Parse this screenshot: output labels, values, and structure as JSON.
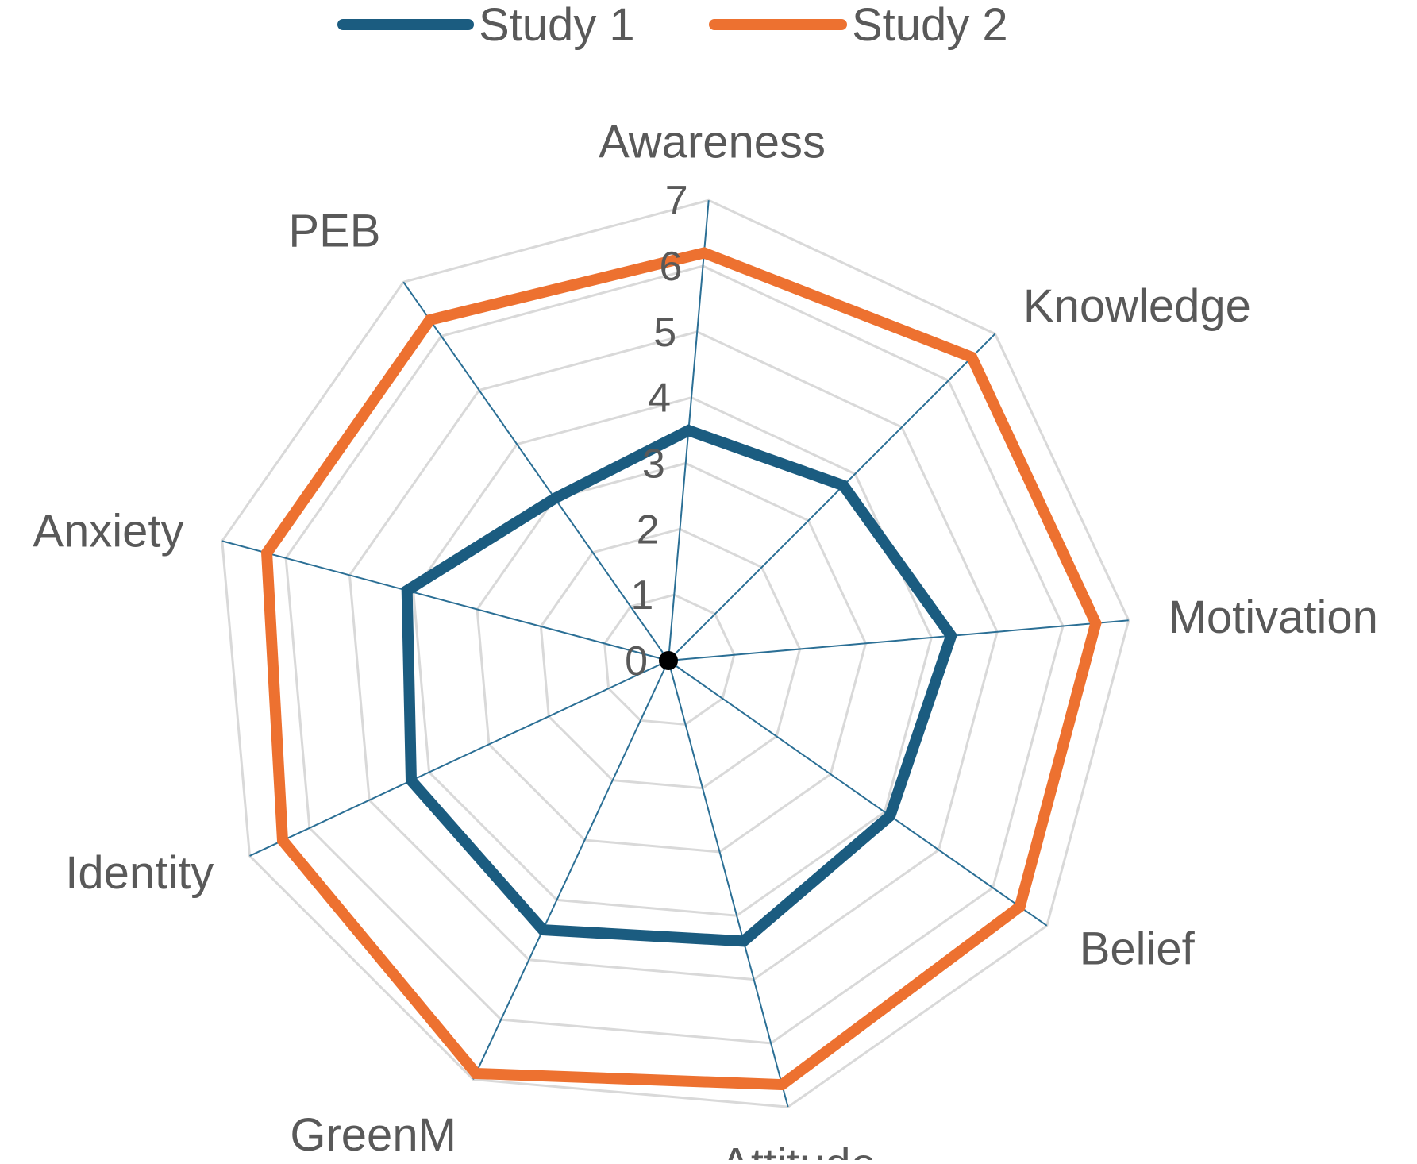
{
  "chart_data": {
    "type": "radar",
    "title": "",
    "categories": [
      "Awareness",
      "Knowledge",
      "Motivation",
      "Belief",
      "Attitude",
      "GreenM",
      "Identity",
      "Anxiety",
      "PEB"
    ],
    "series": [
      {
        "name": "Study 1",
        "color": "#1b5c80",
        "values": [
          3.5,
          3.75,
          4.3,
          4.1,
          4.4,
          4.5,
          4.3,
          4.1,
          3.0
        ]
      },
      {
        "name": "Study 2",
        "color": "#ed7130",
        "values": [
          6.2,
          6.5,
          6.5,
          6.5,
          6.65,
          6.9,
          6.45,
          6.3,
          6.3
        ]
      }
    ],
    "rlim": [
      0,
      7
    ],
    "ticks": [
      0,
      1,
      2,
      3,
      4,
      5,
      6,
      7
    ],
    "tick_labels": [
      "0",
      "1",
      "2",
      "3",
      "4",
      "5",
      "6",
      "7"
    ],
    "grid": true,
    "legend_position": "top"
  },
  "colors": {
    "gridline": "#d9d9d9",
    "spoke": "#2b6f95",
    "center_dot": "#000000",
    "text": "#595959"
  }
}
